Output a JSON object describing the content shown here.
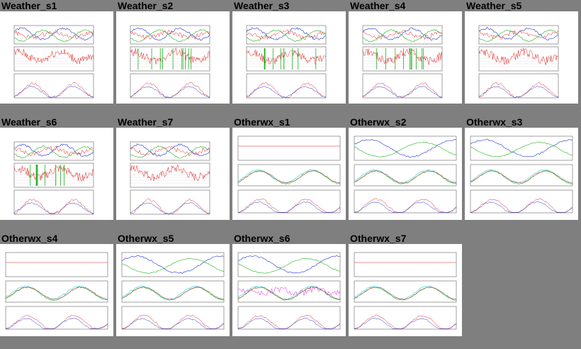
{
  "gallery": {
    "items": [
      {
        "title": "Weather_s1",
        "kind": "weather",
        "seed": 1
      },
      {
        "title": "Weather_s2",
        "kind": "weather",
        "seed": 2
      },
      {
        "title": "Weather_s3",
        "kind": "weather",
        "seed": 3
      },
      {
        "title": "Weather_s4",
        "kind": "weather",
        "seed": 4
      },
      {
        "title": "Weather_s5",
        "kind": "weather",
        "seed": 5
      },
      {
        "title": "Weather_s6",
        "kind": "weather",
        "seed": 6
      },
      {
        "title": "Weather_s7",
        "kind": "weather",
        "seed": 7
      },
      {
        "title": "Otherwx_s1",
        "kind": "otherwx",
        "seed": 11
      },
      {
        "title": "Otherwx_s2",
        "kind": "otherwx",
        "seed": 12
      },
      {
        "title": "Otherwx_s3",
        "kind": "otherwx",
        "seed": 13
      },
      {
        "title": "Otherwx_s4",
        "kind": "otherwx",
        "seed": 14
      },
      {
        "title": "Otherwx_s5",
        "kind": "otherwx",
        "seed": 15
      },
      {
        "title": "Otherwx_s6",
        "kind": "otherwx",
        "seed": 16
      },
      {
        "title": "Otherwx_s7",
        "kind": "otherwx",
        "seed": 17
      }
    ]
  },
  "colors": {
    "background": "#7f7f7f",
    "thumb_bg": "#ffffff",
    "red": "#e02020",
    "blue": "#2030d0",
    "green": "#20b020",
    "cyan": "#30c8e8",
    "magenta": "#e020e0"
  }
}
